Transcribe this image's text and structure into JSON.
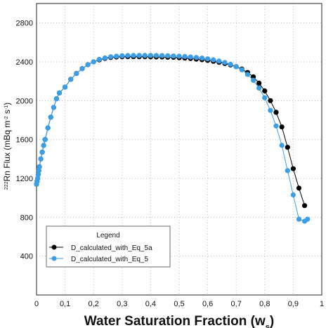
{
  "chart_data": {
    "type": "line",
    "xlabel_main": "Water Saturation Fraction (w",
    "xlabel_sub": "s",
    "xlabel_close": ")",
    "ylabel_sup1": "222",
    "ylabel_mid": "Rn Flux (mBq m",
    "ylabel_sup2": "-2",
    "ylabel_s": " s",
    "ylabel_sup3": "-1",
    "ylabel_close": ")",
    "xlim": [
      0,
      1.0
    ],
    "ylim": [
      0,
      3000
    ],
    "x_ticks": [
      "0",
      "0,1",
      "0,2",
      "0,3",
      "0,4",
      "0,5",
      "0,6",
      "0,7",
      "0,8",
      "0,9",
      "1"
    ],
    "x_tick_values": [
      0,
      0.1,
      0.2,
      0.3,
      0.4,
      0.5,
      0.6,
      0.7,
      0.8,
      0.9,
      1.0
    ],
    "y_ticks": [
      "400",
      "800",
      "1200",
      "1600",
      "2000",
      "2400",
      "2800"
    ],
    "y_tick_values": [
      400,
      800,
      1200,
      1600,
      2000,
      2400,
      2800
    ],
    "grid": "dotted",
    "legend": {
      "title": "Legend",
      "position": "bottom-left"
    },
    "series": [
      {
        "name": "D_calculated_with_Eq_5a",
        "color": "#000000",
        "x": [
          0.0,
          0.002,
          0.004,
          0.006,
          0.008,
          0.01,
          0.015,
          0.02,
          0.025,
          0.03,
          0.04,
          0.05,
          0.06,
          0.07,
          0.08,
          0.1,
          0.12,
          0.14,
          0.16,
          0.18,
          0.2,
          0.22,
          0.24,
          0.26,
          0.28,
          0.3,
          0.32,
          0.34,
          0.36,
          0.38,
          0.4,
          0.42,
          0.44,
          0.46,
          0.48,
          0.5,
          0.52,
          0.54,
          0.56,
          0.58,
          0.6,
          0.62,
          0.64,
          0.66,
          0.68,
          0.7,
          0.72,
          0.74,
          0.76,
          0.78,
          0.8,
          0.82,
          0.84,
          0.86,
          0.88,
          0.9,
          0.92,
          0.94
        ],
        "y": [
          1140,
          1170,
          1200,
          1240,
          1280,
          1320,
          1400,
          1470,
          1540,
          1600,
          1720,
          1830,
          1930,
          2020,
          2080,
          2140,
          2220,
          2280,
          2330,
          2370,
          2400,
          2420,
          2435,
          2445,
          2450,
          2452,
          2453,
          2453,
          2452,
          2452,
          2451,
          2450,
          2450,
          2448,
          2446,
          2442,
          2438,
          2434,
          2428,
          2422,
          2415,
          2405,
          2395,
          2383,
          2368,
          2350,
          2325,
          2290,
          2245,
          2180,
          2100,
          2000,
          1880,
          1730,
          1520,
          1300,
          1100,
          920
        ]
      },
      {
        "name": "D_calculated_with_Eq_5",
        "color": "#3a9ee8",
        "x": [
          0.0,
          0.002,
          0.004,
          0.006,
          0.008,
          0.01,
          0.015,
          0.02,
          0.025,
          0.03,
          0.04,
          0.05,
          0.06,
          0.07,
          0.08,
          0.1,
          0.12,
          0.14,
          0.16,
          0.18,
          0.2,
          0.22,
          0.24,
          0.26,
          0.28,
          0.3,
          0.32,
          0.34,
          0.36,
          0.38,
          0.4,
          0.42,
          0.44,
          0.46,
          0.48,
          0.5,
          0.52,
          0.54,
          0.56,
          0.58,
          0.6,
          0.62,
          0.64,
          0.66,
          0.68,
          0.7,
          0.72,
          0.74,
          0.76,
          0.78,
          0.8,
          0.82,
          0.84,
          0.86,
          0.88,
          0.9,
          0.92,
          0.94,
          0.95
        ],
        "y": [
          1140,
          1170,
          1200,
          1240,
          1280,
          1320,
          1400,
          1470,
          1540,
          1600,
          1720,
          1830,
          1930,
          2020,
          2080,
          2140,
          2220,
          2280,
          2330,
          2370,
          2400,
          2425,
          2440,
          2452,
          2458,
          2462,
          2465,
          2466,
          2466,
          2466,
          2466,
          2465,
          2464,
          2462,
          2460,
          2458,
          2455,
          2450,
          2445,
          2438,
          2430,
          2420,
          2408,
          2393,
          2375,
          2350,
          2318,
          2270,
          2210,
          2130,
          2030,
          1900,
          1740,
          1540,
          1280,
          1030,
          780,
          760,
          780
        ]
      }
    ]
  }
}
